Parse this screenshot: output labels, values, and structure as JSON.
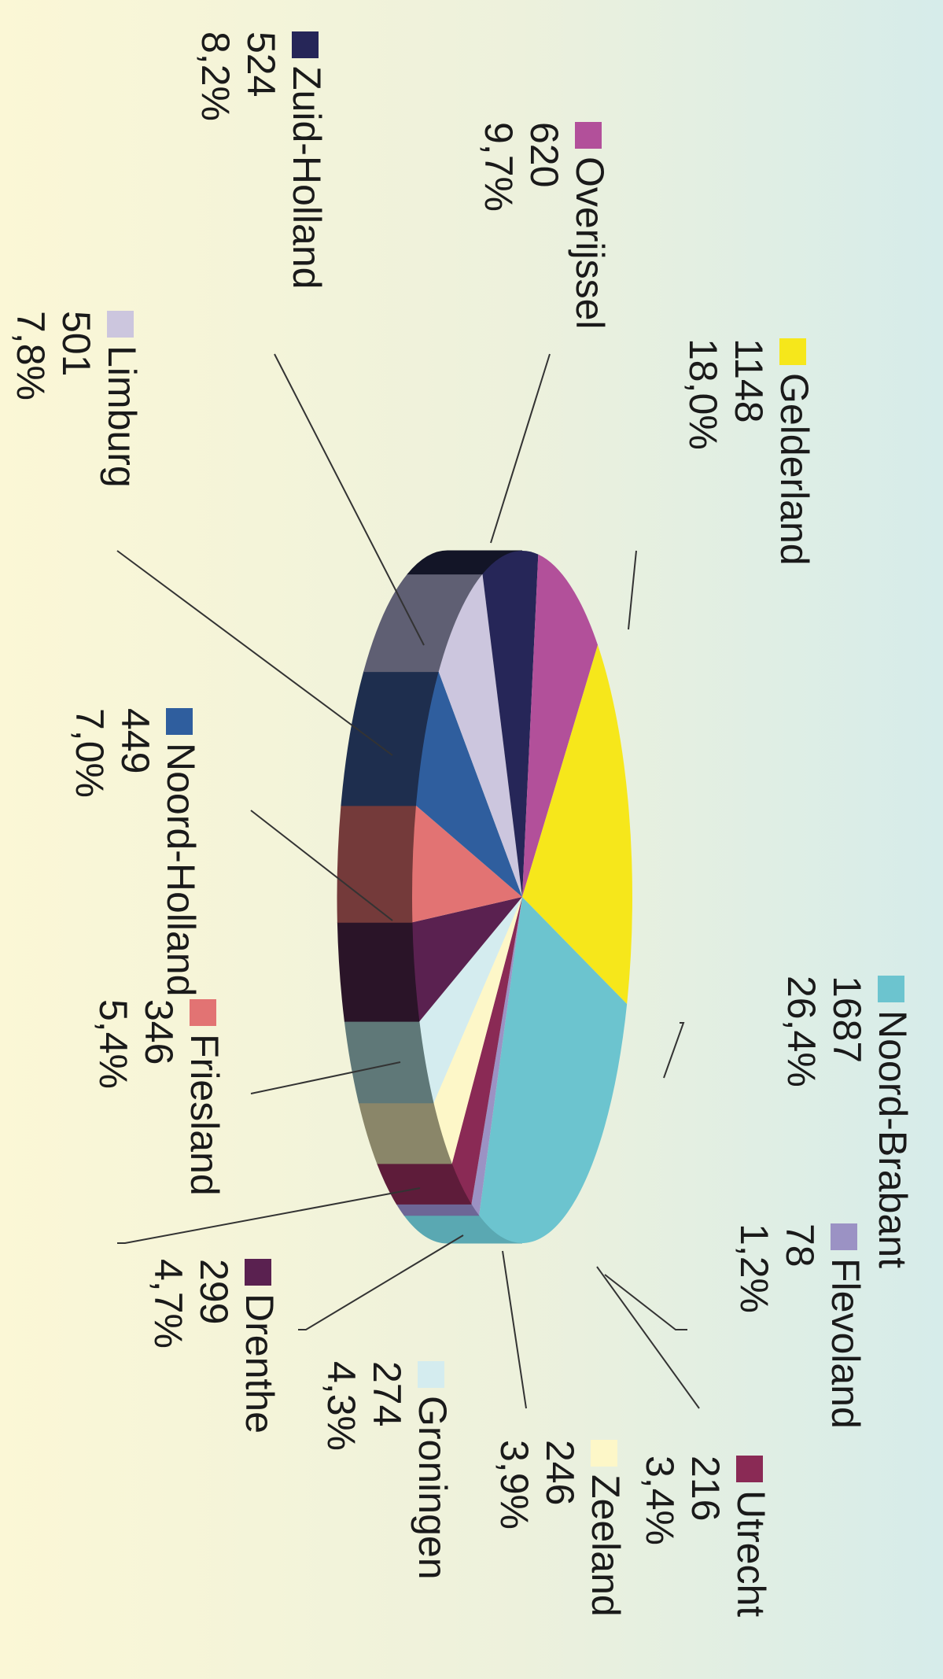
{
  "chart_data": {
    "type": "pie",
    "style": "3d exploded-free pie, rotated 90 degrees clockwise",
    "legend": "labels beside slices with leader lines",
    "slices": [
      {
        "name": "Noord-Brabant",
        "value": 1687,
        "percent": "26,4%",
        "color": "#6cc4cf",
        "side": "#5aa8b2"
      },
      {
        "name": "Flevoland",
        "value": 78,
        "percent": "1,2%",
        "color": "#9b92c4",
        "side": "#6d6696"
      },
      {
        "name": "Utrecht",
        "value": 216,
        "percent": "3,4%",
        "color": "#8a2a55",
        "side": "#5e1c3a"
      },
      {
        "name": "Zeeland",
        "value": 246,
        "percent": "3,9%",
        "color": "#fdf7c8",
        "side": "#8a8669"
      },
      {
        "name": "Groningen",
        "value": 274,
        "percent": "4,3%",
        "color": "#d4ecef",
        "side": "#5f7878"
      },
      {
        "name": "Drenthe",
        "value": 299,
        "percent": "4,7%",
        "color": "#5a2150",
        "side": "#2a1428"
      },
      {
        "name": "Friesland",
        "value": 346,
        "percent": "5,4%",
        "color": "#e27373",
        "side": "#743a3a"
      },
      {
        "name": "Noord-Holland",
        "value": 449,
        "percent": "7,0%",
        "color": "#2f5e9e",
        "side": "#1e2e4e"
      },
      {
        "name": "Limburg",
        "value": 501,
        "percent": "7,8%",
        "color": "#ccc6de",
        "side": "#5f5f73"
      },
      {
        "name": "Zuid-Holland",
        "value": 524,
        "percent": "8,2%",
        "color": "#262658",
        "side": "#131527"
      },
      {
        "name": "Overijssel",
        "value": 620,
        "percent": "9,7%",
        "color": "#b2509a",
        "side": "#6e2c63"
      },
      {
        "name": "Gelderland",
        "value": 1148,
        "percent": "18,0%",
        "color": "#f6e71b",
        "side": "#c2b515"
      }
    ]
  }
}
